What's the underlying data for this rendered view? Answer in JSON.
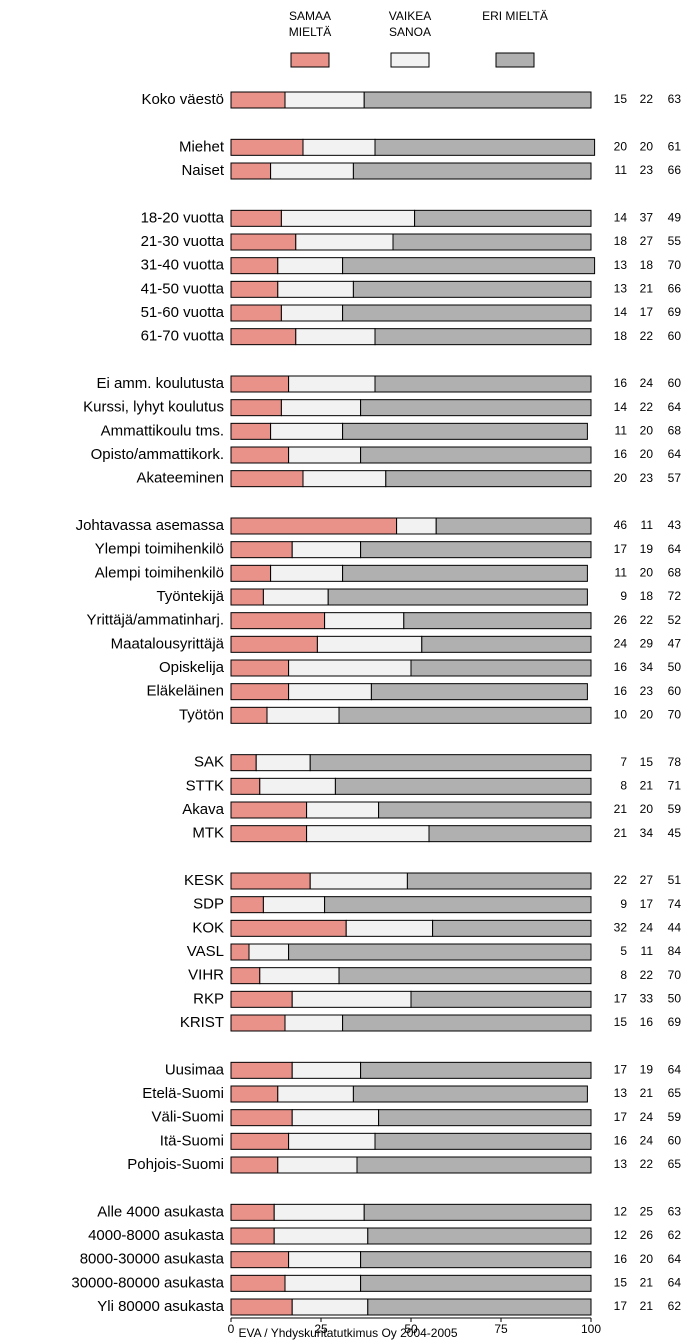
{
  "chart_data": {
    "type": "stacked-barh",
    "categories": [
      "Koko väestö",
      null,
      "Miehet",
      "Naiset",
      null,
      "18-20 vuotta",
      "21-30 vuotta",
      "31-40 vuotta",
      "41-50 vuotta",
      "51-60 vuotta",
      "61-70 vuotta",
      null,
      "Ei amm. koulutusta",
      "Kurssi, lyhyt koulutus",
      "Ammattikoulu tms.",
      "Opisto/ammattikork.",
      "Akateeminen",
      null,
      "Johtavassa asemassa",
      "Ylempi toimihenkilö",
      "Alempi toimihenkilö",
      "Työntekijä",
      "Yrittäjä/ammatinharj.",
      "Maatalousyrittäjä",
      "Opiskelija",
      "Eläkeläinen",
      "Työtön",
      null,
      "SAK",
      "STTK",
      "Akava",
      "MTK",
      null,
      "KESK",
      "SDP",
      "KOK",
      "VASL",
      "VIHR",
      "RKP",
      "KRIST",
      null,
      "Uusimaa",
      "Etelä-Suomi",
      "Väli-Suomi",
      "Itä-Suomi",
      "Pohjois-Suomi",
      null,
      "Alle 4000 asukasta",
      "4000-8000 asukasta",
      "8000-30000 asukasta",
      "30000-80000 asukasta",
      "Yli 80000 asukasta"
    ],
    "series": [
      {
        "name": "SAMAA MIELTÄ",
        "color": "#e8928a",
        "values": [
          15,
          null,
          20,
          11,
          null,
          14,
          18,
          13,
          13,
          14,
          18,
          null,
          16,
          14,
          11,
          16,
          20,
          null,
          46,
          17,
          11,
          9,
          26,
          24,
          16,
          16,
          10,
          null,
          7,
          8,
          21,
          21,
          null,
          22,
          9,
          32,
          5,
          8,
          17,
          15,
          null,
          17,
          13,
          17,
          16,
          13,
          null,
          12,
          12,
          16,
          15,
          17
        ]
      },
      {
        "name": "VAIKEA SANOA",
        "color": "#f2f2f2",
        "values": [
          22,
          null,
          20,
          23,
          null,
          37,
          27,
          18,
          21,
          17,
          22,
          null,
          24,
          22,
          20,
          20,
          23,
          null,
          11,
          19,
          20,
          18,
          22,
          29,
          34,
          23,
          20,
          null,
          15,
          21,
          20,
          34,
          null,
          27,
          17,
          24,
          11,
          22,
          33,
          16,
          null,
          19,
          21,
          24,
          24,
          22,
          null,
          25,
          26,
          20,
          21,
          21
        ]
      },
      {
        "name": "ERI MIELTÄ",
        "color": "#b0b0b0",
        "values": [
          63,
          null,
          61,
          66,
          null,
          49,
          55,
          70,
          66,
          69,
          60,
          null,
          60,
          64,
          68,
          64,
          57,
          null,
          43,
          64,
          68,
          72,
          52,
          47,
          50,
          60,
          70,
          null,
          78,
          71,
          59,
          45,
          null,
          51,
          74,
          44,
          84,
          70,
          50,
          69,
          null,
          64,
          65,
          59,
          60,
          65,
          null,
          63,
          62,
          64,
          64,
          62
        ]
      }
    ],
    "xlim": [
      0,
      100
    ],
    "xticks": [
      0,
      25,
      50,
      75,
      100
    ],
    "footnote": "EVA / Yhdyskuntatutkimus Oy 2004-2005"
  }
}
